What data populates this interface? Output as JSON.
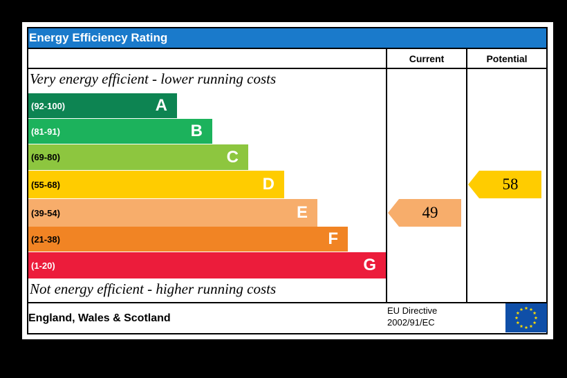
{
  "header": {
    "title": "Energy Efficiency Rating"
  },
  "columns": {
    "current": "Current",
    "potential": "Potential"
  },
  "notes": {
    "top": "Very energy efficient - lower running costs",
    "bottom": "Not energy efficient - higher running costs"
  },
  "footer": {
    "region": "England, Wales & Scotland",
    "directive_line1": "EU Directive",
    "directive_line2": "2002/91/EC"
  },
  "chart_data": {
    "type": "bar",
    "categories": [
      "A",
      "B",
      "C",
      "D",
      "E",
      "F",
      "G"
    ],
    "ranges": [
      "(92-100)",
      "(81-91)",
      "(69-80)",
      "(55-68)",
      "(39-54)",
      "(21-38)",
      "(1-20)"
    ],
    "colors": [
      "#0d8452",
      "#1cb25c",
      "#8dc63f",
      "#ffcc00",
      "#f7ad6b",
      "#f18424",
      "#ec1c3b"
    ],
    "current": {
      "value": "49",
      "band": "E"
    },
    "potential": {
      "value": "58",
      "band": "D"
    },
    "marker_colors": {
      "current": "#f7ad6b",
      "potential": "#ffcc00"
    }
  },
  "icons": {
    "flag": "eu-flag-icon"
  }
}
